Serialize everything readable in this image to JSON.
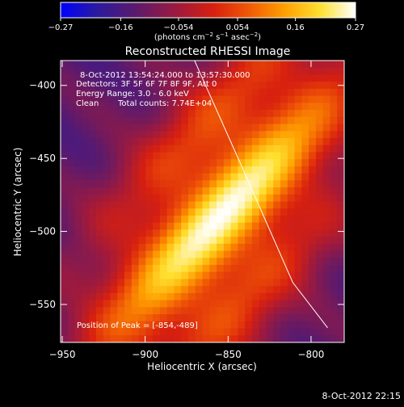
{
  "chart_data": {
    "type": "heatmap",
    "title": "Reconstructed RHESSI Image",
    "xlabel": "Heliocentric X (arcsec)",
    "ylabel": "Heliocentric Y (arcsec)",
    "xlim": [
      -951,
      -780
    ],
    "ylim": [
      -576,
      -383
    ],
    "x_ticks": [
      -950,
      -900,
      -850,
      -800
    ],
    "y_ticks": [
      -400,
      -450,
      -500,
      -550
    ],
    "x_tick_labels": [
      "−950",
      "−900",
      "−850",
      "−800"
    ],
    "y_tick_labels": [
      "−400",
      "−450",
      "−500",
      "−550"
    ],
    "colorbar": {
      "ticks": [
        -0.27,
        -0.16,
        -0.054,
        0.054,
        0.16,
        0.27
      ],
      "tick_labels": [
        "−0.27",
        "−0.16",
        "−0.054",
        "0.054",
        "0.16",
        "0.27"
      ],
      "range": [
        -0.27,
        0.27
      ],
      "unit_prefix": "(photons cm",
      "unit_exp1": "−2",
      "unit_mid": " s",
      "unit_exp2": "−1",
      "unit_mid2": " asec",
      "unit_exp3": "−2",
      "unit_suffix": ")"
    },
    "annotations": {
      "time_range": "8-Oct-2012 13:54:24.000 to 13:57:30.000",
      "detectors": "Detectors: 3F 5F 6F 7F 8F 9F, Att 0",
      "energy": "Energy Range: 3.0 - 6.0 keV",
      "algorithm": "Clean",
      "counts": "Total counts: 7.74E+04",
      "peak": "Position of Peak = [-854,-489]"
    },
    "peak": {
      "x": -854,
      "y": -489
    },
    "limb_line": [
      [
        -873,
        -376
      ],
      [
        -840,
        -460
      ],
      [
        -811,
        -535
      ],
      [
        -790,
        -566
      ]
    ],
    "colormap": "blue-purple-red-yellow-white (IDL color table 5)"
  },
  "footer": {
    "timestamp": "8-Oct-2012 22:15"
  }
}
